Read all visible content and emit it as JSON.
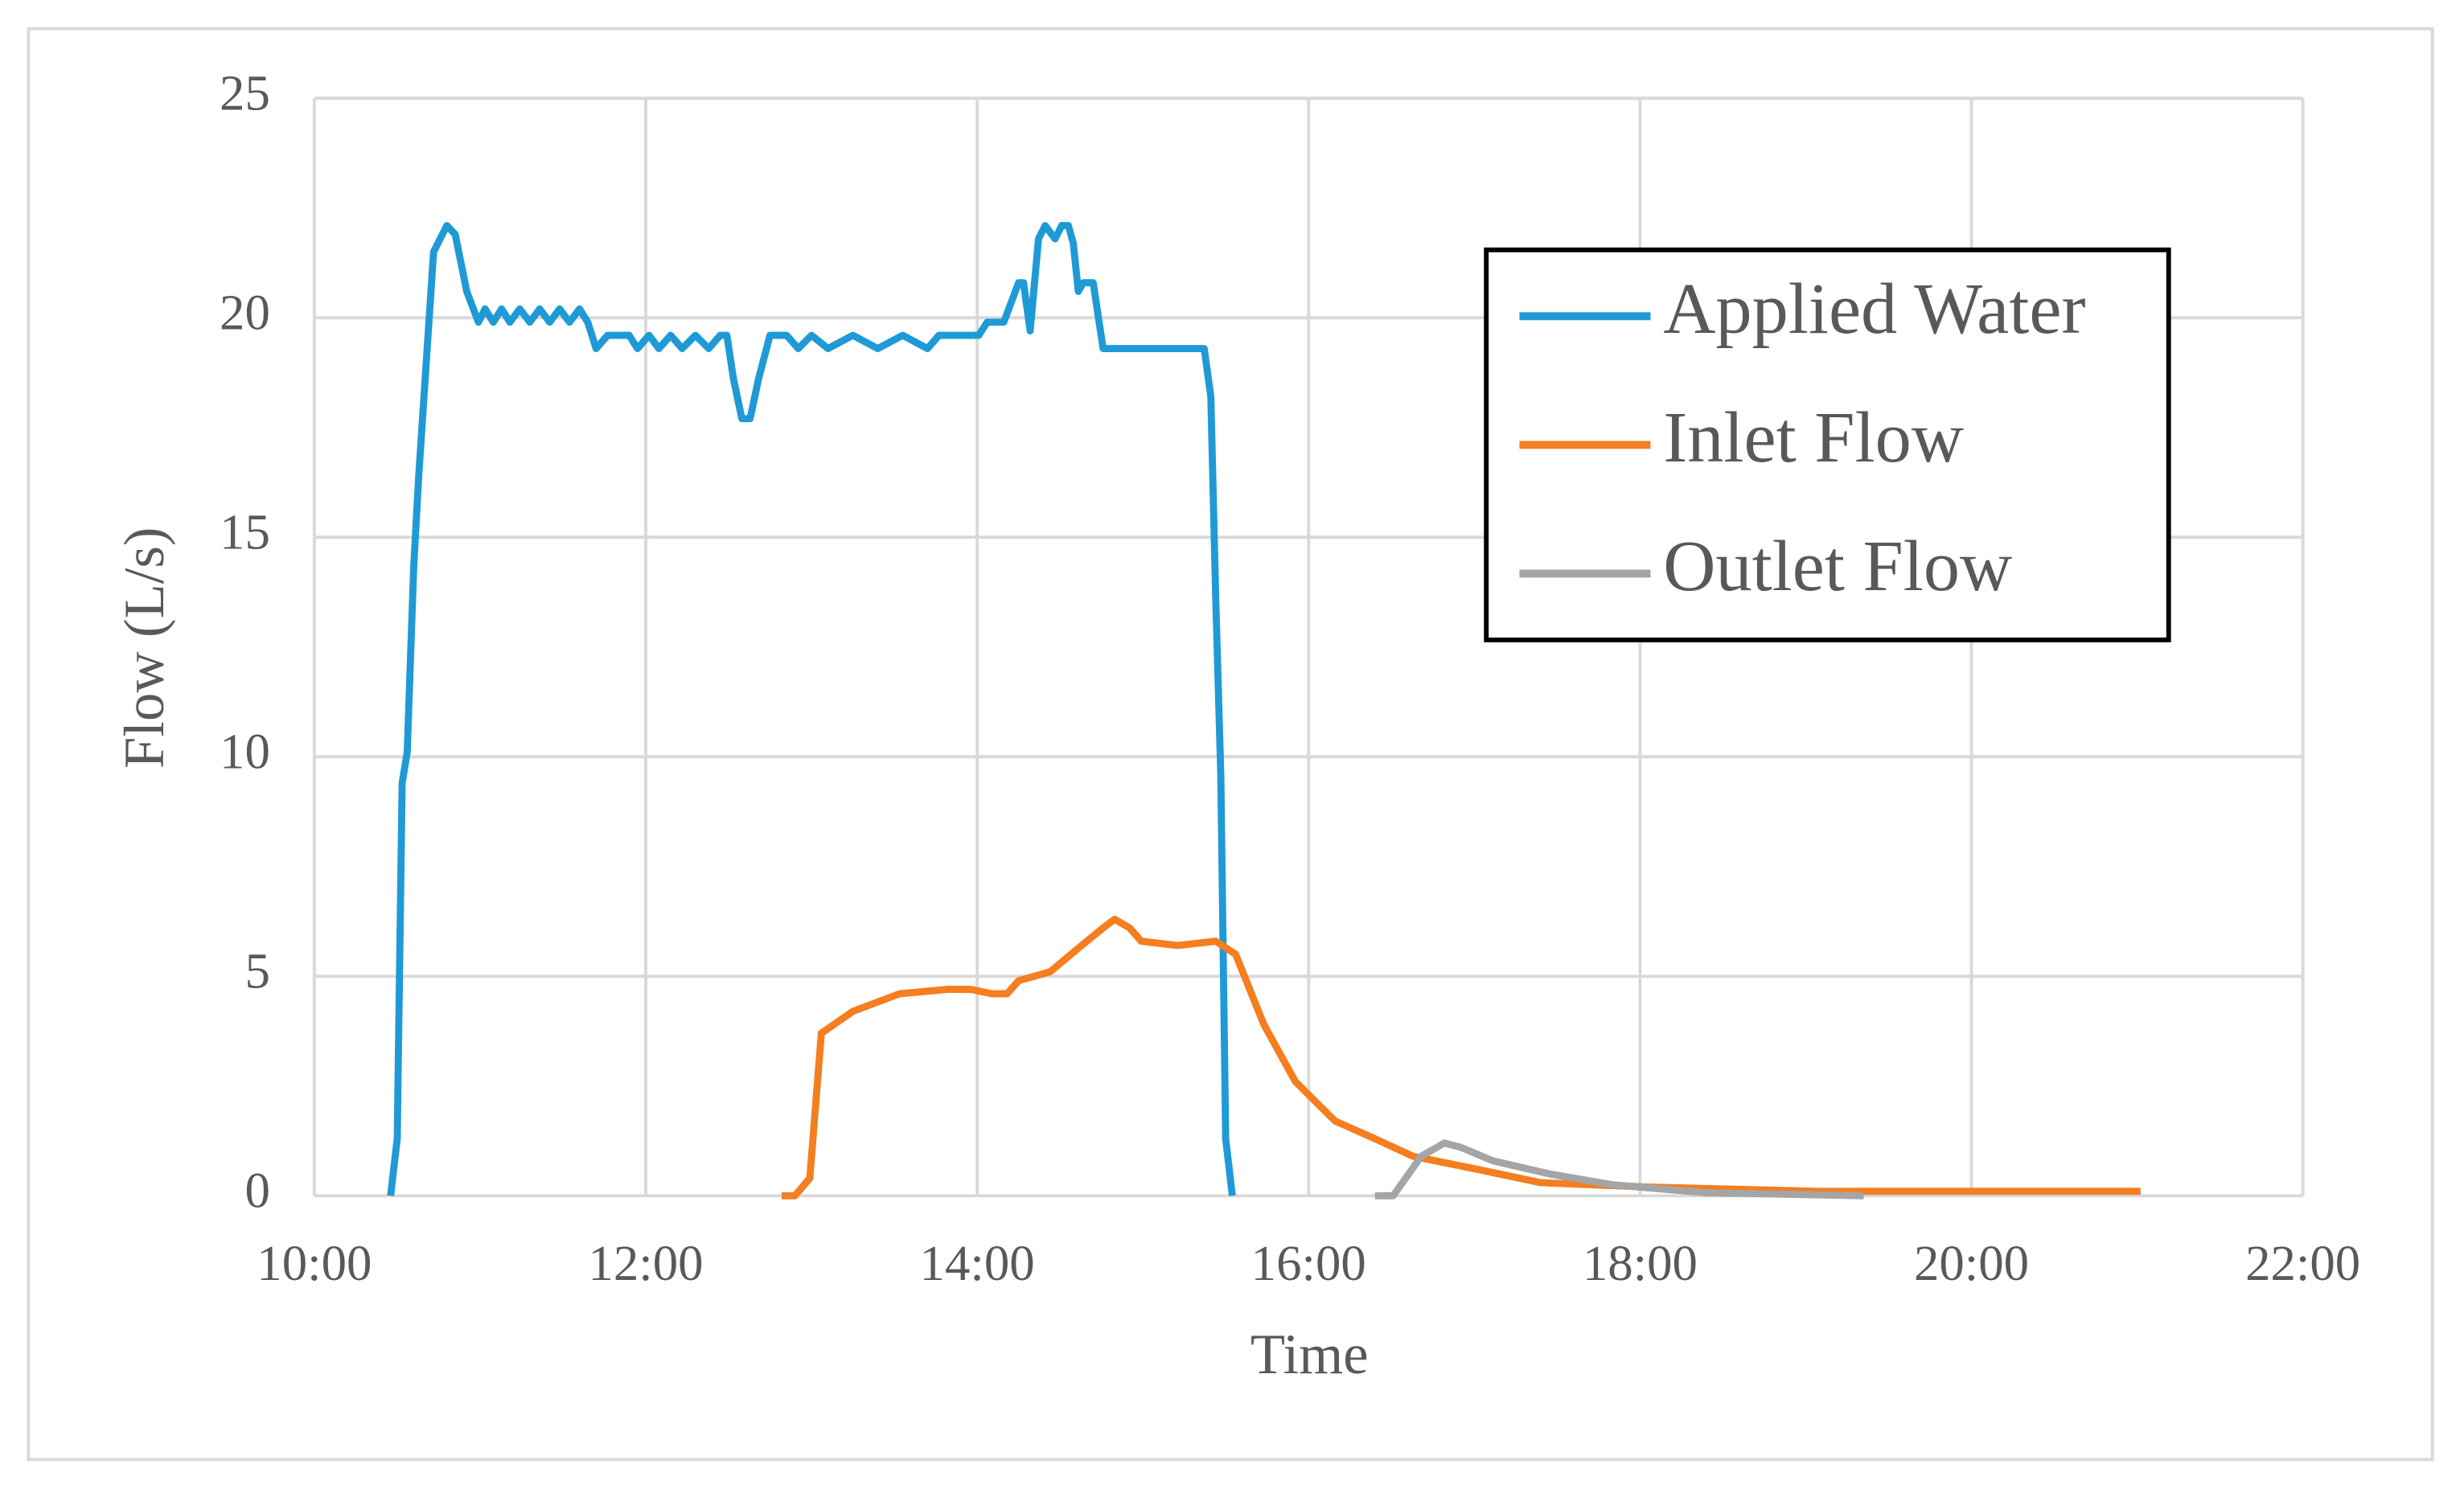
{
  "chart_data": {
    "type": "line",
    "x_label": "Time",
    "y_label": "Flow (L/s)",
    "xlim": [
      10,
      22
    ],
    "xticks": [
      {
        "value": 10,
        "label": "10:00"
      },
      {
        "value": 12,
        "label": "12:00"
      },
      {
        "value": 14,
        "label": "14:00"
      },
      {
        "value": 16,
        "label": "16:00"
      },
      {
        "value": 18,
        "label": "18:00"
      },
      {
        "value": 20,
        "label": "20:00"
      },
      {
        "value": 22,
        "label": "22:00"
      }
    ],
    "ylim": [
      0,
      25
    ],
    "yticks": [
      0,
      5,
      10,
      15,
      20,
      25
    ],
    "grid": true,
    "legend": "upper right",
    "series": [
      {
        "name": "Applied Water",
        "color": "#1f9ad6",
        "x": [
          10.46,
          10.5,
          10.53,
          10.56,
          10.6,
          10.63,
          10.72,
          10.8,
          10.85,
          10.92,
          10.99,
          11.03,
          11.08,
          11.13,
          11.18,
          11.24,
          11.3,
          11.36,
          11.42,
          11.48,
          11.54,
          11.6,
          11.65,
          11.7,
          11.77,
          11.9,
          11.95,
          12.02,
          12.08,
          12.15,
          12.22,
          12.3,
          12.38,
          12.45,
          12.49,
          12.53,
          12.58,
          12.63,
          12.68,
          12.75,
          12.85,
          12.92,
          13.0,
          13.1,
          13.25,
          13.4,
          13.55,
          13.7,
          13.77,
          14.01,
          14.06,
          14.16,
          14.25,
          14.28,
          14.32,
          14.37,
          14.41,
          14.47,
          14.51,
          14.55,
          14.58,
          14.61,
          14.64,
          14.7,
          14.76,
          15.37,
          15.41,
          15.44,
          15.47,
          15.5,
          15.54
        ],
        "values": [
          0,
          1.3,
          9.4,
          10.1,
          14.3,
          16.4,
          21.5,
          22.1,
          21.9,
          20.6,
          19.9,
          20.2,
          19.9,
          20.2,
          19.9,
          20.2,
          19.9,
          20.2,
          19.9,
          20.2,
          19.9,
          20.2,
          19.9,
          19.3,
          19.6,
          19.6,
          19.3,
          19.6,
          19.3,
          19.6,
          19.3,
          19.6,
          19.3,
          19.6,
          19.6,
          18.6,
          17.7,
          17.7,
          18.6,
          19.6,
          19.6,
          19.3,
          19.6,
          19.3,
          19.6,
          19.3,
          19.6,
          19.3,
          19.6,
          19.6,
          19.9,
          19.9,
          20.8,
          20.8,
          19.7,
          21.8,
          22.1,
          21.8,
          22.1,
          22.1,
          21.7,
          20.6,
          20.8,
          20.8,
          19.3,
          19.3,
          18.2,
          13.6,
          9.6,
          1.3,
          0
        ]
      },
      {
        "name": "Inlet Flow",
        "color": "#f47e20",
        "x": [
          12.82,
          12.9,
          12.99,
          13.06,
          13.25,
          13.53,
          13.82,
          13.96,
          14.09,
          14.18,
          14.25,
          14.44,
          14.63,
          14.76,
          14.83,
          14.92,
          14.99,
          15.21,
          15.44,
          15.56,
          15.73,
          15.92,
          16.16,
          16.4,
          16.63,
          17.02,
          17.4,
          18.02,
          19.07,
          21.02
        ],
        "values": [
          0,
          0,
          0.4,
          3.7,
          4.2,
          4.6,
          4.7,
          4.7,
          4.6,
          4.6,
          4.9,
          5.1,
          5.7,
          6.1,
          6.3,
          6.1,
          5.8,
          5.7,
          5.8,
          5.5,
          3.9,
          2.6,
          1.7,
          1.3,
          0.9,
          0.6,
          0.3,
          0.2,
          0.1,
          0.1
        ]
      },
      {
        "name": "Outlet Flow",
        "color": "#a5a5a5",
        "x": [
          16.4,
          16.51,
          16.68,
          16.82,
          16.92,
          17.11,
          17.45,
          17.83,
          18.4,
          19.35
        ],
        "values": [
          0,
          0,
          0.9,
          1.2,
          1.1,
          0.8,
          0.5,
          0.25,
          0.07,
          0
        ]
      }
    ]
  }
}
